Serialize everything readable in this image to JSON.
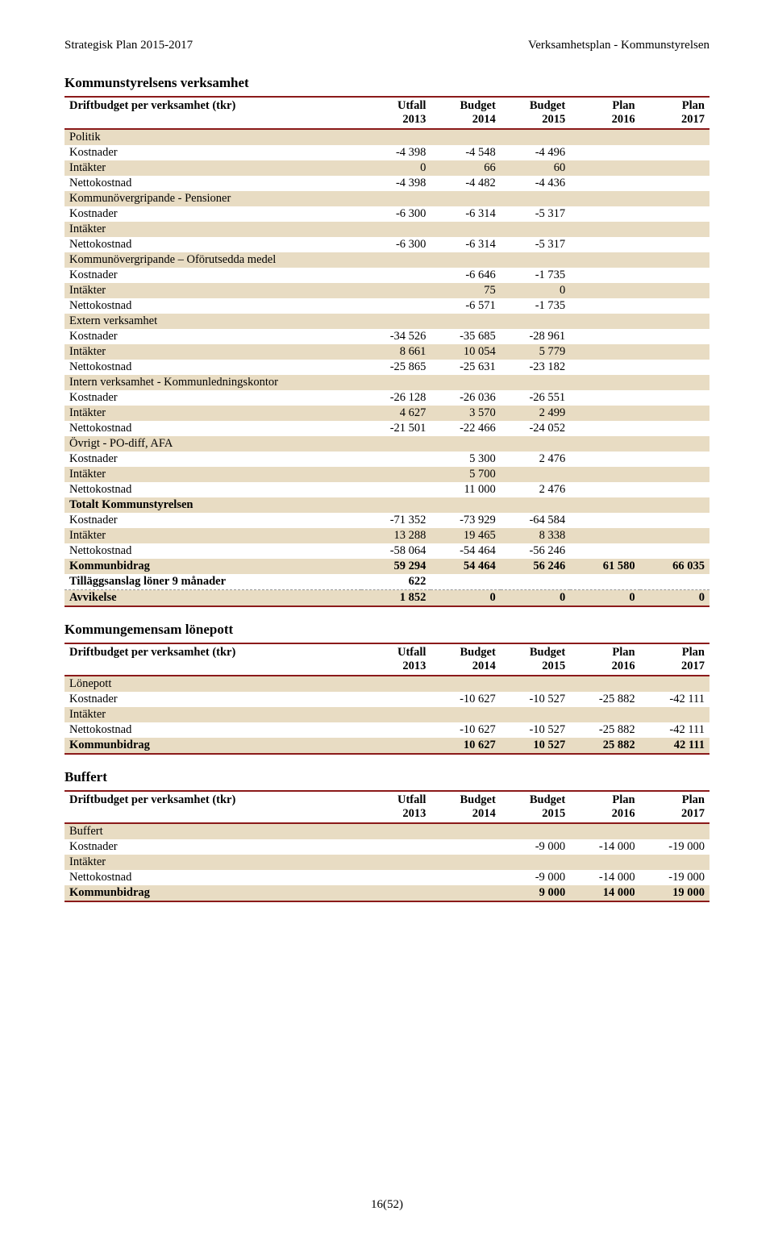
{
  "header": {
    "left": "Strategisk Plan 2015-2017",
    "right": "Verksamhetsplan - Kommunstyrelsen"
  },
  "footer": "16(52)",
  "colors": {
    "rule": "#8b1a1a",
    "shade": "#e8dcc3",
    "text": "#000000",
    "bg": "#ffffff"
  },
  "columns": {
    "headers_top": [
      "Driftbudget per verksamhet (tkr)",
      "Utfall",
      "Budget",
      "Budget",
      "Plan",
      "Plan"
    ],
    "headers_bottom": [
      "",
      "2013",
      "2014",
      "2015",
      "2016",
      "2017"
    ]
  },
  "sections": [
    {
      "title": "Kommunstyrelsens verksamhet",
      "table": [
        {
          "label": "Politik",
          "shade": true,
          "bold": false,
          "v": [
            "",
            "",
            "",
            "",
            ""
          ]
        },
        {
          "label": "Kostnader",
          "v": [
            "-4 398",
            "-4 548",
            "-4 496",
            "",
            ""
          ]
        },
        {
          "label": "Intäkter",
          "shade": true,
          "v": [
            "0",
            "66",
            "60",
            "",
            ""
          ]
        },
        {
          "label": "Nettokostnad",
          "v": [
            "-4 398",
            "-4 482",
            "-4 436",
            "",
            ""
          ]
        },
        {
          "label": "Kommunövergripande - Pensioner",
          "shade": true,
          "v": [
            "",
            "",
            "",
            "",
            ""
          ]
        },
        {
          "label": "Kostnader",
          "v": [
            "-6 300",
            "-6 314",
            "-5 317",
            "",
            ""
          ]
        },
        {
          "label": "Intäkter",
          "shade": true,
          "v": [
            "",
            "",
            "",
            "",
            ""
          ]
        },
        {
          "label": "Nettokostnad",
          "v": [
            "-6 300",
            "-6 314",
            "-5 317",
            "",
            ""
          ]
        },
        {
          "label": "Kommunövergripande – Oförutsedda medel",
          "shade": true,
          "v": [
            "",
            "",
            "",
            "",
            ""
          ]
        },
        {
          "label": "Kostnader",
          "v": [
            "",
            "-6 646",
            "-1 735",
            "",
            ""
          ]
        },
        {
          "label": "Intäkter",
          "shade": true,
          "v": [
            "",
            "75",
            "0",
            "",
            ""
          ]
        },
        {
          "label": "Nettokostnad",
          "v": [
            "",
            "-6 571",
            "-1 735",
            "",
            ""
          ]
        },
        {
          "label": "Extern verksamhet",
          "shade": true,
          "v": [
            "",
            "",
            "",
            "",
            ""
          ]
        },
        {
          "label": "Kostnader",
          "v": [
            "-34 526",
            "-35 685",
            "-28 961",
            "",
            ""
          ]
        },
        {
          "label": "Intäkter",
          "shade": true,
          "v": [
            "8 661",
            "10 054",
            "5 779",
            "",
            ""
          ]
        },
        {
          "label": "Nettokostnad",
          "v": [
            "-25 865",
            "-25 631",
            "-23 182",
            "",
            ""
          ]
        },
        {
          "label": "Intern verksamhet - Kommunledningskontor",
          "shade": true,
          "v": [
            "",
            "",
            "",
            "",
            ""
          ]
        },
        {
          "label": "Kostnader",
          "v": [
            "-26 128",
            "-26 036",
            "-26 551",
            "",
            ""
          ]
        },
        {
          "label": "Intäkter",
          "shade": true,
          "v": [
            "4 627",
            "3 570",
            "2 499",
            "",
            ""
          ]
        },
        {
          "label": "Nettokostnad",
          "v": [
            "-21 501",
            "-22 466",
            "-24 052",
            "",
            ""
          ]
        },
        {
          "label": "Övrigt - PO-diff, AFA",
          "shade": true,
          "v": [
            "",
            "",
            "",
            "",
            ""
          ]
        },
        {
          "label": "Kostnader",
          "v": [
            "",
            "5 300",
            "2 476",
            "",
            ""
          ]
        },
        {
          "label": "Intäkter",
          "shade": true,
          "v": [
            "",
            "5 700",
            "",
            "",
            ""
          ]
        },
        {
          "label": "Nettokostnad",
          "v": [
            "",
            "11 000",
            "2 476",
            "",
            ""
          ]
        },
        {
          "label": "Totalt Kommunstyrelsen",
          "shade": true,
          "bold": true,
          "v": [
            "",
            "",
            "",
            "",
            ""
          ]
        },
        {
          "label": "Kostnader",
          "v": [
            "-71 352",
            "-73 929",
            "-64 584",
            "",
            ""
          ]
        },
        {
          "label": "Intäkter",
          "shade": true,
          "v": [
            "13 288",
            "19 465",
            "8 338",
            "",
            ""
          ]
        },
        {
          "label": "Nettokostnad",
          "v": [
            "-58 064",
            "-54 464",
            "-56 246",
            "",
            ""
          ]
        },
        {
          "label": "Kommunbidrag",
          "shade": true,
          "bold": true,
          "v": [
            "59 294",
            "54 464",
            "56 246",
            "61 580",
            "66 035"
          ]
        },
        {
          "label": "Tilläggsanslag löner 9 månader",
          "bold": true,
          "dash": true,
          "v": [
            "622",
            "",
            "",
            "",
            ""
          ]
        },
        {
          "label": "Avvikelse",
          "bold": true,
          "shade": true,
          "bottomRule": true,
          "v": [
            "1 852",
            "0",
            "0",
            "0",
            "0"
          ]
        }
      ]
    },
    {
      "title": "Kommungemensam lönepott",
      "table": [
        {
          "label": "Lönepott",
          "shade": true,
          "v": [
            "",
            "",
            "",
            "",
            ""
          ]
        },
        {
          "label": "Kostnader",
          "v": [
            "",
            "-10 627",
            "-10 527",
            "-25 882",
            "-42 111"
          ]
        },
        {
          "label": "Intäkter",
          "shade": true,
          "v": [
            "",
            "",
            "",
            "",
            ""
          ]
        },
        {
          "label": "Nettokostnad",
          "v": [
            "",
            "-10 627",
            "-10 527",
            "-25 882",
            "-42 111"
          ]
        },
        {
          "label": "Kommunbidrag",
          "shade": true,
          "bold": true,
          "bottomRule": true,
          "v": [
            "",
            "10 627",
            "10 527",
            "25 882",
            "42 111"
          ]
        }
      ]
    },
    {
      "title": "Buffert",
      "table": [
        {
          "label": "Buffert",
          "shade": true,
          "v": [
            "",
            "",
            "",
            "",
            ""
          ]
        },
        {
          "label": "Kostnader",
          "v": [
            "",
            "",
            "-9 000",
            "-14 000",
            "-19 000"
          ]
        },
        {
          "label": "Intäkter",
          "shade": true,
          "v": [
            "",
            "",
            "",
            "",
            ""
          ]
        },
        {
          "label": "Nettokostnad",
          "v": [
            "",
            "",
            "-9 000",
            "-14 000",
            "-19 000"
          ]
        },
        {
          "label": "Kommunbidrag",
          "shade": true,
          "bold": true,
          "bottomRule": true,
          "v": [
            "",
            "",
            "9 000",
            "14 000",
            "19 000"
          ]
        }
      ]
    }
  ]
}
